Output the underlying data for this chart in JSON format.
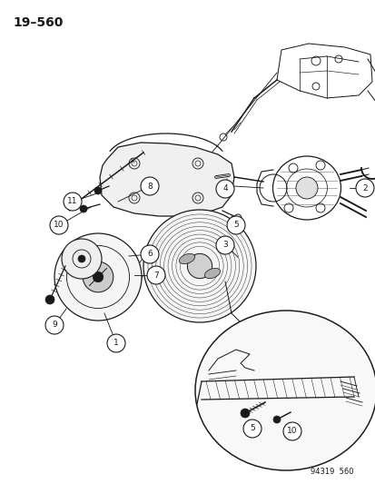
{
  "title": "19–560",
  "footer": "94319  560",
  "bg_color": "#ffffff",
  "fg_color": "#1a1a1a",
  "fig_width": 4.14,
  "fig_height": 5.33,
  "dpi": 100
}
